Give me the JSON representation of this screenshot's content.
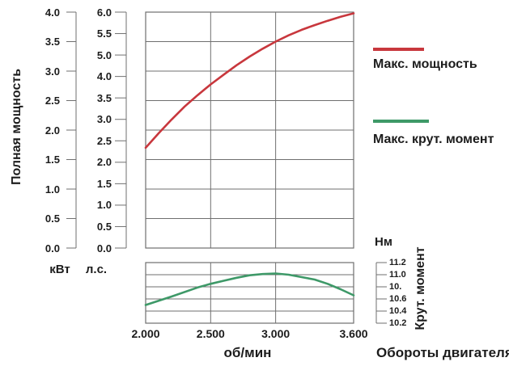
{
  "labels": {
    "power_axis_title": "Полная мощность",
    "kw_unit": "кВт",
    "hp_unit": "л.с.",
    "nm_unit": "Нм",
    "torque_axis_title": "Крут. момент",
    "x_unit": "об/мин",
    "x_title": "Обороты двигателя"
  },
  "legend": {
    "position": "right",
    "items": [
      {
        "label": "Макс. мощность",
        "color": "#c8373d"
      },
      {
        "label": "Макс. крут. момент",
        "color": "#3e9968"
      }
    ]
  },
  "colors": {
    "power_curve": "#c8373d",
    "torque_curve": "#3e9968",
    "grid": "#6f6f6f",
    "text": "#1c1c1c"
  },
  "chart_data": [
    {
      "type": "line",
      "name": "max-power",
      "title": "Макс. мощность",
      "xlabel": "об/мин",
      "x_range": [
        2000,
        3600
      ],
      "x_ticks": [
        {
          "value": 2000,
          "label": "2.000"
        },
        {
          "value": 2500,
          "label": "2.500"
        },
        {
          "value": 3000,
          "label": "3.000"
        },
        {
          "value": 3600,
          "label": "3.600"
        }
      ],
      "y_axes": [
        {
          "unit": "кВт",
          "range": [
            0.0,
            4.0
          ],
          "tick_labels_top_to_bottom": [
            "4.0",
            "3.5",
            "3.0",
            "2.5",
            "2.0",
            "1.5",
            "1.0",
            "0.5",
            "0.0"
          ]
        },
        {
          "unit": "л.с.",
          "range": [
            0.0,
            6.0
          ],
          "tick_labels_top_to_bottom": [
            "6.0",
            "5.5",
            "5.0",
            "4.0",
            "3.5",
            "3.0",
            "2.5",
            "2.0",
            "1.5",
            "1.0",
            "0.5",
            "0.0"
          ]
        }
      ],
      "grid": true,
      "points_rpm_hp": [
        [
          2000,
          2.55
        ],
        [
          2100,
          2.92
        ],
        [
          2200,
          3.27
        ],
        [
          2300,
          3.6
        ],
        [
          2400,
          3.89
        ],
        [
          2500,
          4.16
        ],
        [
          2600,
          4.41
        ],
        [
          2700,
          4.65
        ],
        [
          2800,
          4.87
        ],
        [
          2900,
          5.07
        ],
        [
          3000,
          5.25
        ],
        [
          3100,
          5.41
        ],
        [
          3200,
          5.55
        ],
        [
          3300,
          5.67
        ],
        [
          3400,
          5.78
        ],
        [
          3500,
          5.88
        ],
        [
          3600,
          5.97
        ]
      ]
    },
    {
      "type": "line",
      "name": "max-torque",
      "title": "Макс. крут. момент",
      "xlabel": "об/мин",
      "x_range": [
        2000,
        3600
      ],
      "y_axis": {
        "unit": "Нм",
        "range": [
          10.2,
          11.2
        ],
        "tick_labels_top_to_bottom": [
          "11.2",
          "11.0",
          "10.",
          "10.6",
          "10.4",
          "10.2"
        ]
      },
      "grid": true,
      "points_rpm_nm": [
        [
          2000,
          10.5
        ],
        [
          2200,
          10.64
        ],
        [
          2400,
          10.79
        ],
        [
          2500,
          10.85
        ],
        [
          2600,
          10.9
        ],
        [
          2700,
          10.95
        ],
        [
          2800,
          10.99
        ],
        [
          2900,
          11.01
        ],
        [
          3000,
          11.02
        ],
        [
          3100,
          11.0
        ],
        [
          3200,
          10.96
        ],
        [
          3300,
          10.92
        ],
        [
          3400,
          10.85
        ],
        [
          3500,
          10.76
        ],
        [
          3600,
          10.66
        ]
      ]
    }
  ]
}
